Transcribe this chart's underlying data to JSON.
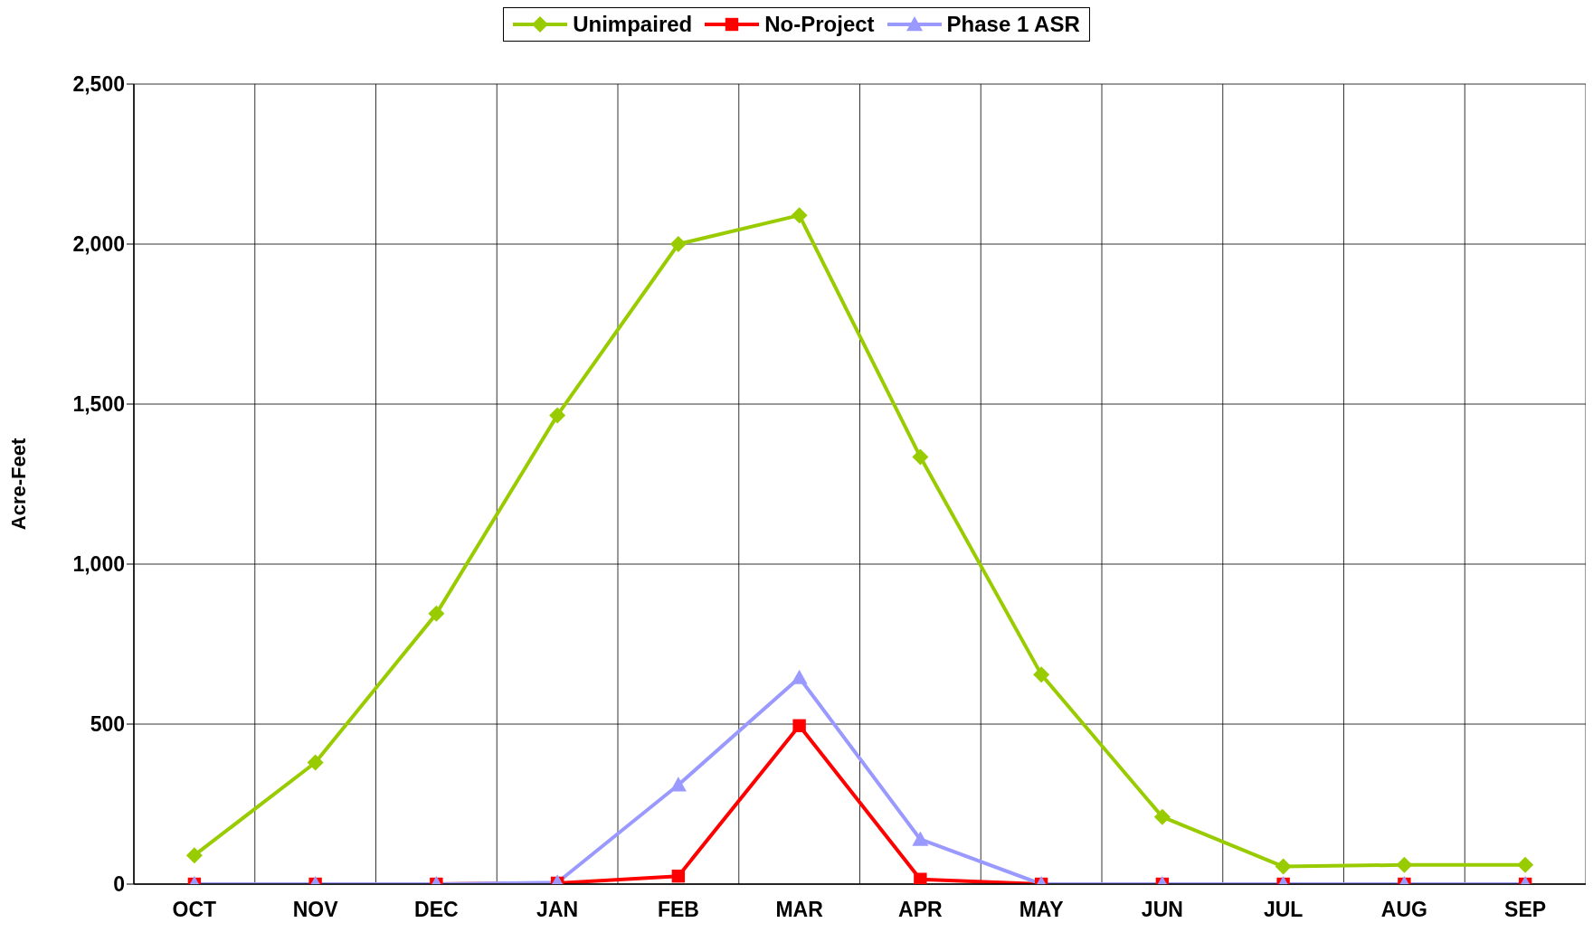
{
  "chart_data": {
    "type": "line",
    "ylabel": "Acre-Feet",
    "categories": [
      "OCT",
      "NOV",
      "DEC",
      "JAN",
      "FEB",
      "MAR",
      "APR",
      "MAY",
      "JUN",
      "JUL",
      "AUG",
      "SEP"
    ],
    "series": [
      {
        "name": "Unimpaired",
        "color": "#99cc00",
        "marker": "diamond",
        "values": [
          90,
          380,
          845,
          1465,
          2000,
          2090,
          1335,
          655,
          210,
          55,
          60,
          60
        ]
      },
      {
        "name": "No-Project",
        "color": "#ff0000",
        "marker": "square",
        "values": [
          0,
          0,
          0,
          3,
          25,
          495,
          15,
          0,
          0,
          0,
          0,
          0
        ]
      },
      {
        "name": "Phase 1 ASR",
        "color": "#9999ff",
        "marker": "triangle",
        "values": [
          0,
          0,
          0,
          5,
          310,
          645,
          140,
          0,
          0,
          0,
          0,
          0
        ]
      }
    ],
    "ylim": [
      0,
      2500
    ],
    "yticks": [
      0,
      500,
      {
        "value": 1000,
        "label": "1,000"
      },
      {
        "value": 1500,
        "label": "1,500"
      },
      {
        "value": 2000,
        "label": "2,000"
      },
      {
        "value": 2500,
        "label": "2,500"
      }
    ],
    "grid": true,
    "legend": "top"
  }
}
